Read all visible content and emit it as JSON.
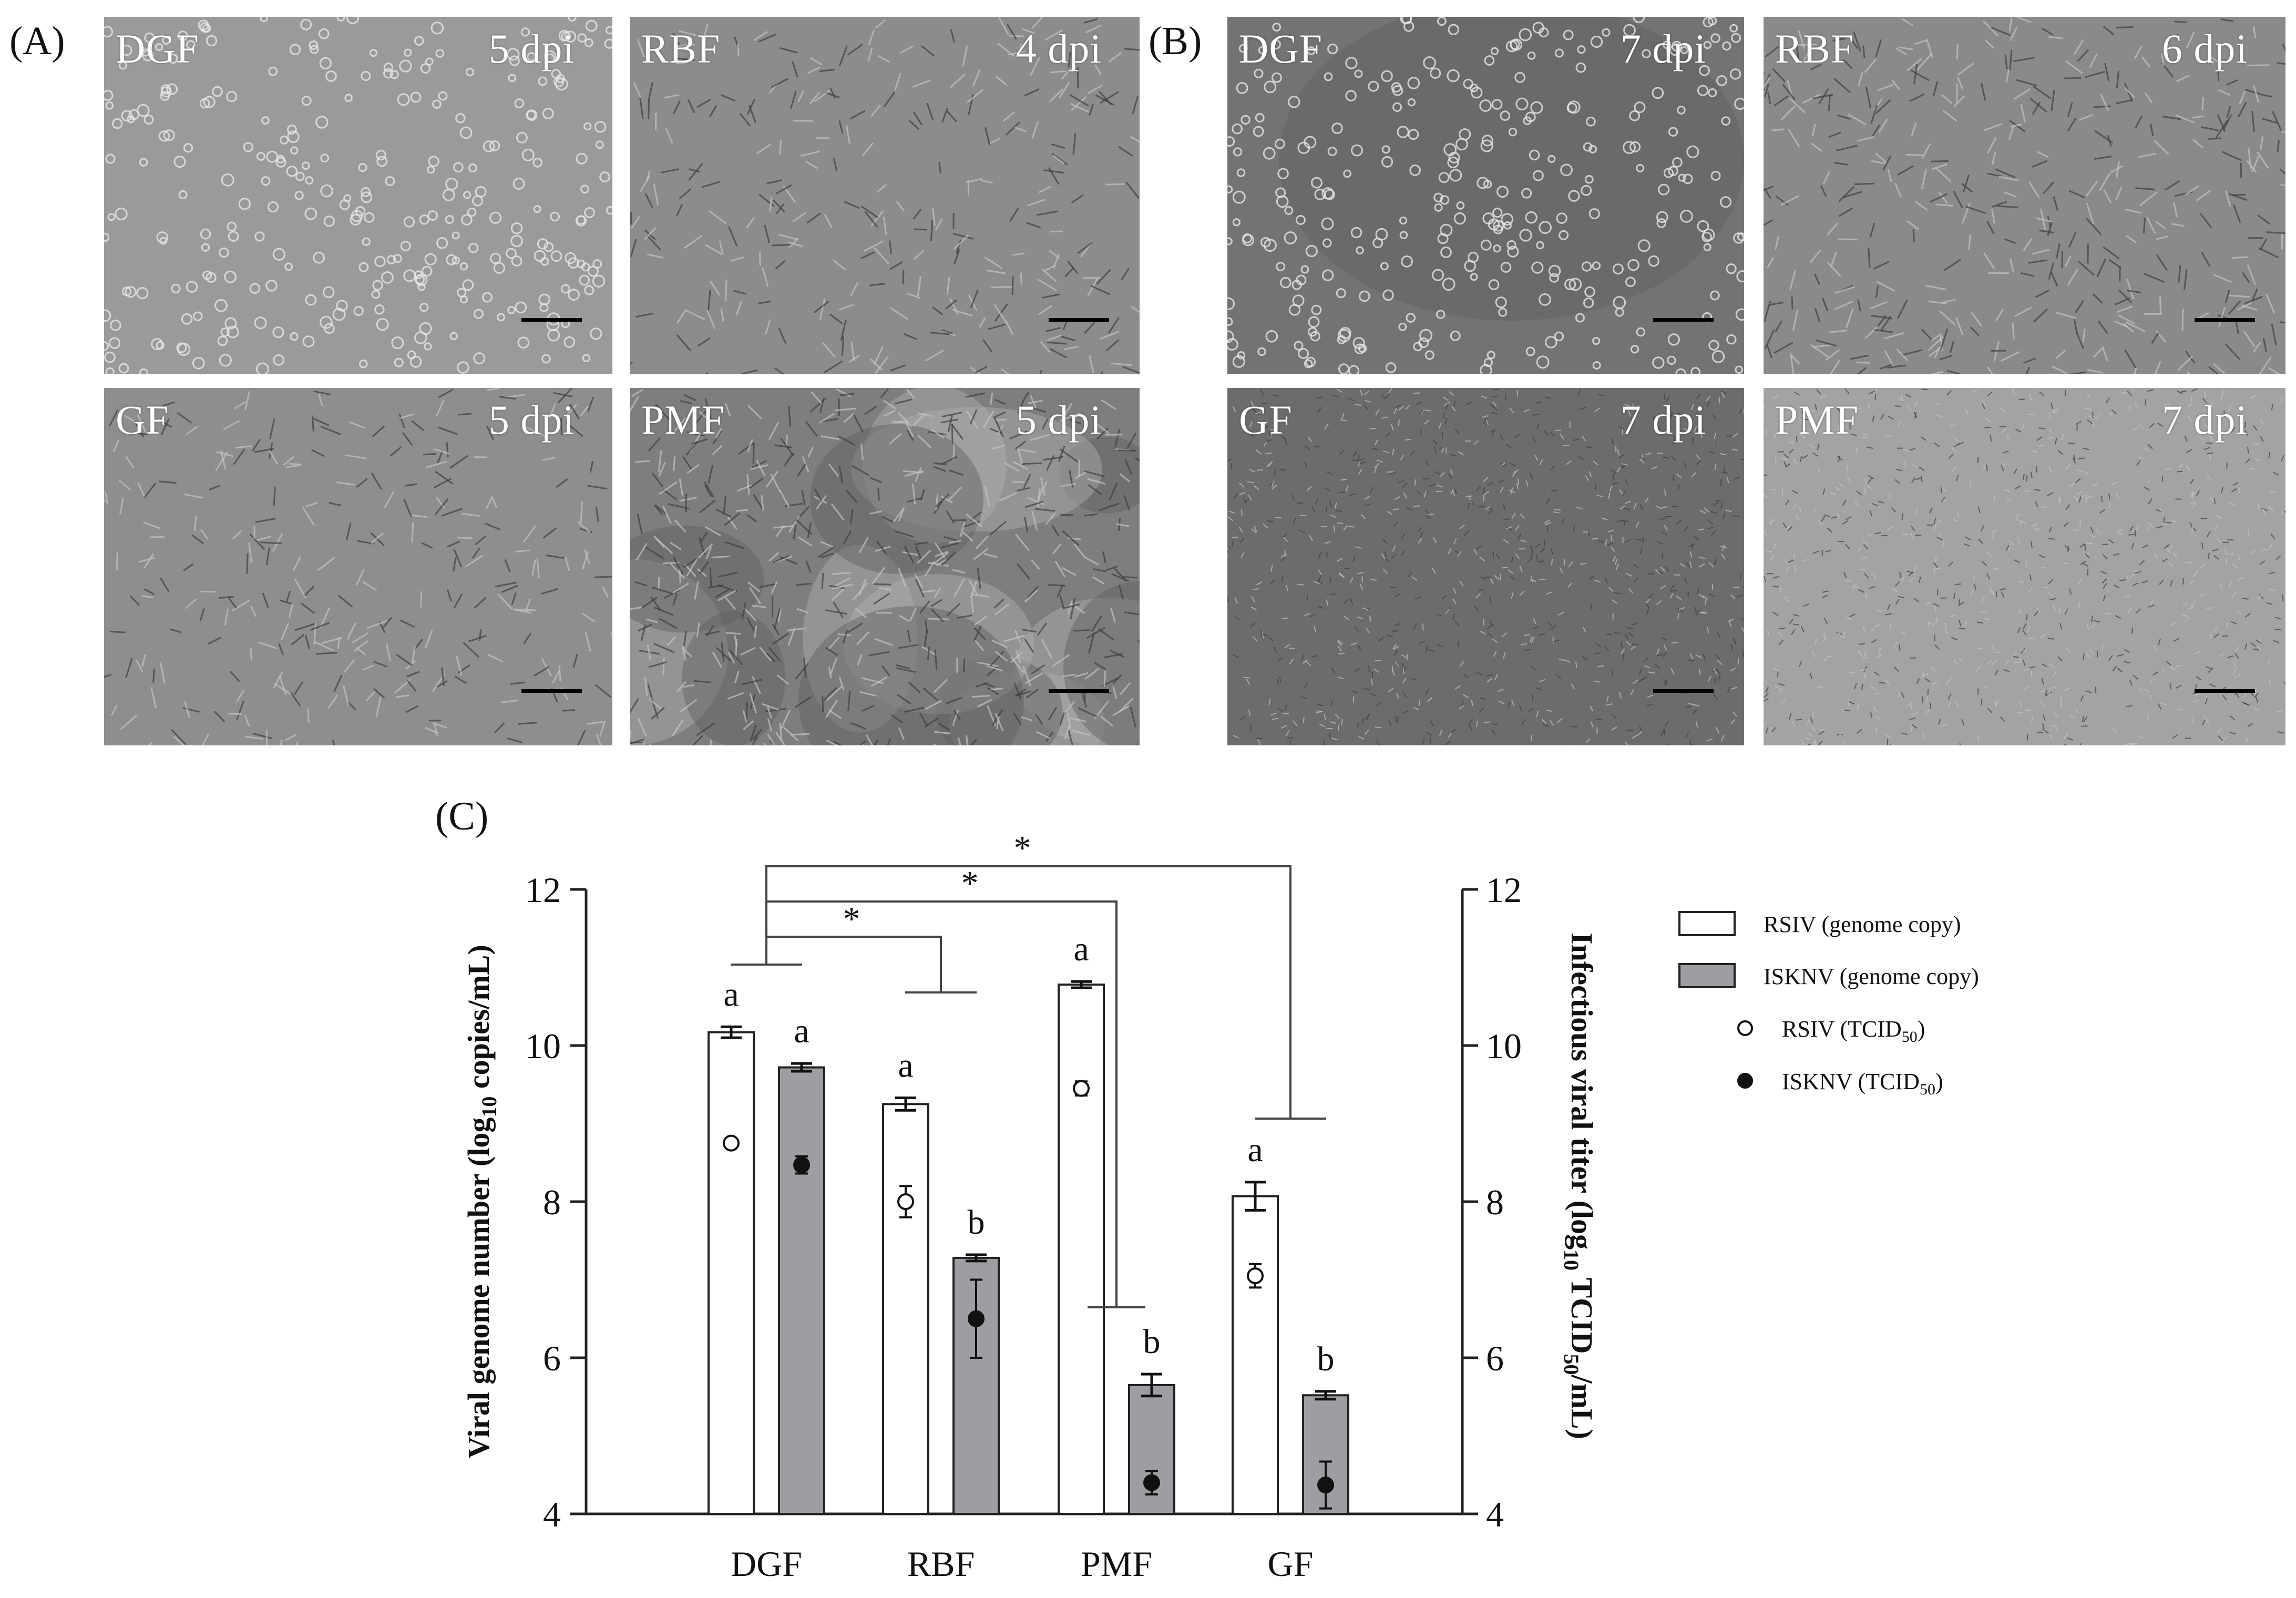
{
  "panel_labels": {
    "a": "(A)",
    "b": "(B)",
    "c": "(C)"
  },
  "micrographs": [
    {
      "cell": "DGF",
      "dpi": "5 dpi",
      "tone": "#9a9a9a",
      "style": "round"
    },
    {
      "cell": "RBF",
      "dpi": "4 dpi",
      "tone": "#8c8c8c",
      "style": "spindle"
    },
    {
      "cell": "GF",
      "dpi": "5 dpi",
      "tone": "#8e8e8e",
      "style": "spindle"
    },
    {
      "cell": "PMF",
      "dpi": "5 dpi",
      "tone": "#7e7e7e",
      "style": "patchy"
    },
    {
      "cell": "DGF",
      "dpi": "7 dpi",
      "tone": "#737373",
      "style": "round-sparse"
    },
    {
      "cell": "RBF",
      "dpi": "6 dpi",
      "tone": "#8a8a8a",
      "style": "spindle-dense"
    },
    {
      "cell": "GF",
      "dpi": "7 dpi",
      "tone": "#6c6c6c",
      "style": "fine"
    },
    {
      "cell": "PMF",
      "dpi": "7 dpi",
      "tone": "#a3a3a3",
      "style": "fine-light"
    }
  ],
  "chart_data": {
    "type": "bar",
    "categories": [
      "DGF",
      "RBF",
      "PMF",
      "GF"
    ],
    "ylabel_left_parts": [
      "Viral genome number (log",
      "10",
      " copies/mL)"
    ],
    "ylabel_right_parts": [
      "Infectious viral titer (log",
      "10",
      " TCID",
      "50",
      "/mL)"
    ],
    "ylim": [
      4,
      12
    ],
    "yticks": [
      "4",
      "6",
      "8",
      "10",
      "12"
    ],
    "series": [
      {
        "name": "RSIV (genome copy)",
        "kind": "bar",
        "color": "#ffffff",
        "values": [
          10.17,
          9.25,
          10.78,
          8.07
        ],
        "err": [
          0.07,
          0.08,
          0.04,
          0.18
        ],
        "sig": [
          "a",
          "a",
          "a",
          "a"
        ]
      },
      {
        "name": "ISKNV (genome copy)",
        "kind": "bar",
        "color": "#9d9da2",
        "values": [
          9.72,
          7.28,
          5.65,
          5.52
        ],
        "err": [
          0.05,
          0.04,
          0.14,
          0.05
        ],
        "sig": [
          "a",
          "b",
          "b",
          "b"
        ]
      },
      {
        "name": "RSIV (TCID50)",
        "kind": "point",
        "marker": "open",
        "values": [
          8.75,
          8.0,
          9.45,
          7.05
        ],
        "err": [
          0,
          0.2,
          0.09,
          0.15
        ]
      },
      {
        "name": "ISKNV (TCID50)",
        "kind": "point",
        "marker": "filled",
        "values": [
          8.47,
          6.5,
          4.4,
          4.37
        ],
        "err": [
          0.11,
          0.5,
          0.15,
          0.3
        ]
      }
    ],
    "legend_items": [
      {
        "label": "RSIV (genome copy)",
        "sub": ""
      },
      {
        "label": "ISKNV (genome copy)",
        "sub": ""
      },
      {
        "label": "RSIV (TCID",
        "sub": "50",
        "tail": ")"
      },
      {
        "label": "ISKNV (TCID",
        "sub": "50",
        "tail": ")"
      }
    ],
    "significance": {
      "mark": "*",
      "comparisons": [
        "DGF vs RBF",
        "DGF vs PMF",
        "DGF vs GF"
      ]
    },
    "legend_position": "right",
    "grid": false
  }
}
